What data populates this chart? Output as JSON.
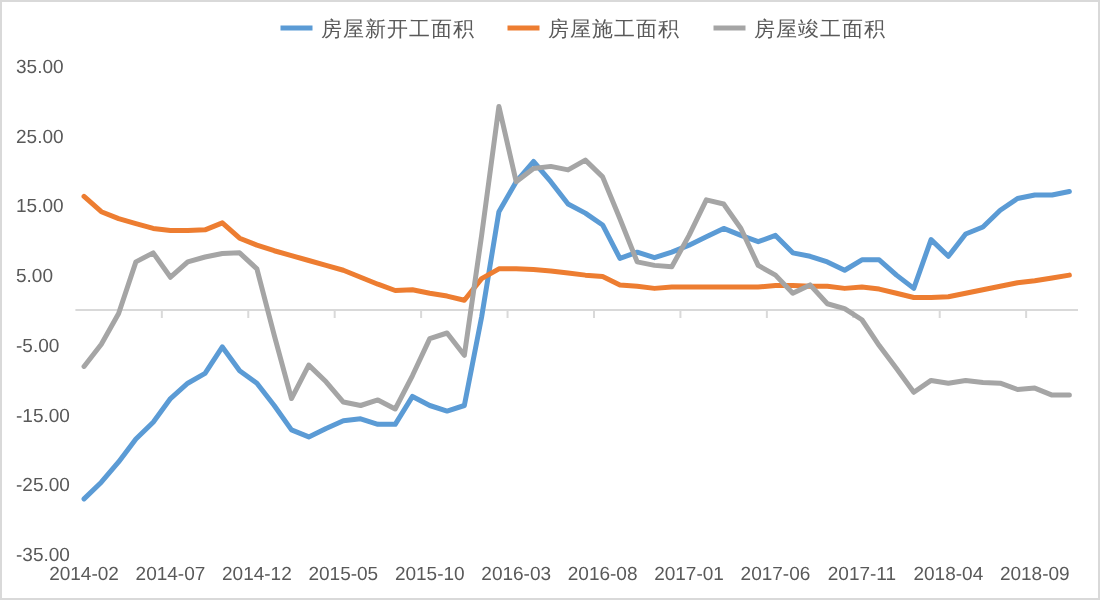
{
  "chart_data": {
    "type": "line",
    "legend": "top",
    "categories": [
      "2014-02",
      null,
      null,
      null,
      null,
      "2014-07",
      null,
      null,
      null,
      null,
      "2014-12",
      null,
      null,
      null,
      null,
      "2015-05",
      null,
      null,
      null,
      null,
      "2015-10",
      null,
      null,
      null,
      null,
      "2016-03",
      null,
      null,
      null,
      null,
      "2016-08",
      null,
      null,
      null,
      null,
      "2017-01",
      null,
      null,
      null,
      null,
      "2017-06",
      null,
      null,
      null,
      null,
      "2017-11",
      null,
      null,
      null,
      null,
      "2018-04",
      null,
      null,
      null,
      null,
      "2018-09",
      null,
      null
    ],
    "ylim": [
      -35,
      35
    ],
    "yticks": [
      {
        "value": -35,
        "label": "-35.00"
      },
      {
        "value": -25,
        "label": "-25.00"
      },
      {
        "value": -15,
        "label": "-15.00"
      },
      {
        "value": -5,
        "label": "-5.00"
      },
      {
        "value": 5,
        "label": "5.00"
      },
      {
        "value": 15,
        "label": "15.00"
      },
      {
        "value": 25,
        "label": "25.00"
      },
      {
        "value": 35,
        "label": "35.00"
      }
    ],
    "grid": false,
    "series": [
      {
        "name": "房屋新开工面积",
        "color": "#5b9bd5",
        "values": [
          -27.1,
          -24.7,
          -21.8,
          -18.5,
          -16.1,
          -12.7,
          -10.5,
          -9.1,
          -5.3,
          -8.7,
          -10.5,
          -13.7,
          -17.2,
          -18.2,
          -17,
          -15.9,
          -15.6,
          -16.4,
          -16.4,
          -12.4,
          -13.7,
          -14.5,
          -13.7,
          -1,
          14.1,
          18.4,
          21.3,
          18.4,
          15.2,
          13.9,
          12.2,
          7.4,
          8.3,
          7.5,
          8.3,
          9.3,
          10.5,
          11.7,
          10.7,
          9.8,
          10.7,
          8.2,
          7.7,
          6.9,
          5.7,
          7.2,
          7.2,
          5,
          3.1,
          10.1,
          7.7,
          10.9,
          11.9,
          14.3,
          16,
          16.5,
          16.5,
          17
        ]
      },
      {
        "name": "房屋施工面积",
        "color": "#ed7d31",
        "values": [
          16.3,
          14.1,
          13.1,
          12.4,
          11.7,
          11.4,
          11.4,
          11.5,
          12.5,
          10.3,
          9.3,
          8.5,
          7.8,
          7.1,
          6.4,
          5.7,
          4.7,
          3.7,
          2.8,
          2.9,
          2.4,
          2,
          1.4,
          4.5,
          5.9,
          5.9,
          5.8,
          5.6,
          5.3,
          5,
          4.8,
          3.6,
          3.4,
          3.1,
          3.3,
          3.3,
          3.3,
          3.3,
          3.3,
          3.3,
          3.5,
          3.5,
          3.4,
          3.4,
          3.1,
          3.3,
          3,
          2.4,
          1.8,
          1.8,
          1.9,
          2.4,
          2.9,
          3.4,
          3.9,
          4.2,
          4.6,
          5
        ]
      },
      {
        "name": "房屋竣工面积",
        "color": "#a5a5a5",
        "values": [
          -8.1,
          -4.9,
          -0.5,
          6.9,
          8.2,
          4.7,
          6.9,
          7.6,
          8.1,
          8.2,
          5.9,
          -3.6,
          -12.7,
          -7.9,
          -10.3,
          -13.2,
          -13.7,
          -12.9,
          -14.2,
          -9.4,
          -4.1,
          -3.3,
          -6.5,
          10.7,
          29.2,
          18.4,
          20.3,
          20.6,
          20.1,
          21.5,
          19.1,
          13.1,
          6.9,
          6.4,
          6.2,
          10.7,
          15.8,
          15.2,
          11.7,
          6.4,
          5,
          2.4,
          3.6,
          0.9,
          0.2,
          -1.4,
          -5.1,
          -8.4,
          -11.8,
          -10.1,
          -10.5,
          -10.1,
          -10.4,
          -10.5,
          -11.4,
          -11.2,
          -12.2,
          -12.2
        ]
      }
    ]
  }
}
